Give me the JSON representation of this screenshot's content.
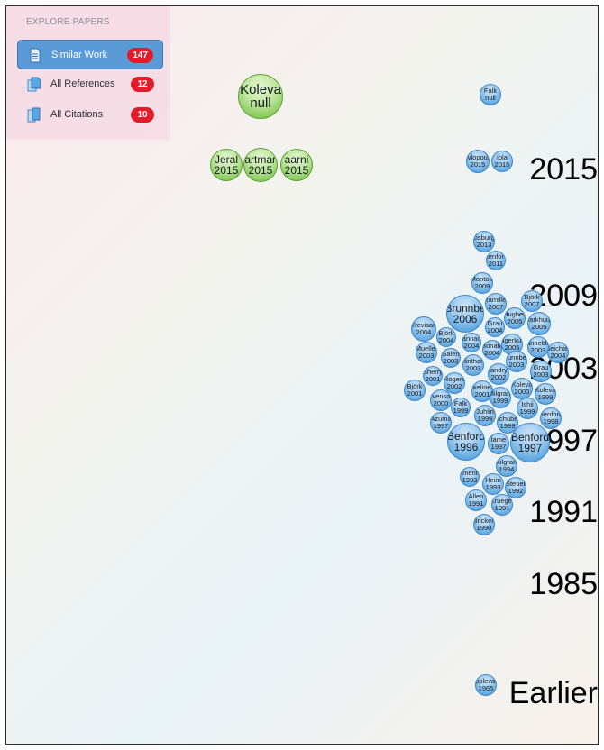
{
  "panel": {
    "title": "EXPLORE PAPERS",
    "items": [
      {
        "label": "Similar Work",
        "count": "147",
        "icon": "document-icon",
        "active": true
      },
      {
        "label": "All References",
        "count": "12",
        "icon": "references-icon",
        "active": false
      },
      {
        "label": "All Citations",
        "count": "10",
        "icon": "citations-icon",
        "active": false
      }
    ]
  },
  "timeline": {
    "years": [
      "2015",
      "2009",
      "2003",
      "1997",
      "1991",
      "1985",
      "Earlier"
    ]
  },
  "colors": {
    "selected_bubble": "#7dc74f",
    "paper_bubble": "#5aa6e0",
    "badge": "#e21b2a",
    "active_nav": "#5a9ad7"
  },
  "papers": [
    {
      "author": "Koleva",
      "year": "null",
      "kind": "selected"
    },
    {
      "author": "Jeral",
      "year": "2015",
      "kind": "selected"
    },
    {
      "author": "Hartmann",
      "year": "2015",
      "kind": "selected"
    },
    {
      "author": "aarni",
      "year": "2015",
      "kind": "selected"
    },
    {
      "author": "Falk",
      "year": "null"
    },
    {
      "author": "Pavlopoulos",
      "year": "2015"
    },
    {
      "author": "iola",
      "year": "2015"
    },
    {
      "author": "Vosburgh",
      "year": "2013"
    },
    {
      "author": "Benford",
      "year": "2011"
    },
    {
      "author": "Montola",
      "year": "2009"
    },
    {
      "author": "Brunnbe",
      "year": "2006"
    },
    {
      "author": "Ramiller",
      "year": "2007"
    },
    {
      "author": "Björk",
      "year": "2007"
    },
    {
      "author": "Grau",
      "year": "2004"
    },
    {
      "author": "Hughes",
      "year": "2005"
    },
    {
      "author": "Trevisan",
      "year": "2004"
    },
    {
      "author": "Barkhuus",
      "year": "2005"
    },
    {
      "author": "Björk",
      "year": "2004"
    },
    {
      "author": "lannacl",
      "year": "2004"
    },
    {
      "author": "Magerkurth",
      "year": "2005"
    },
    {
      "author": "Mueller",
      "year": "2003"
    },
    {
      "author": "Bonato",
      "year": "2004"
    },
    {
      "author": "Sanneblad",
      "year": "2003"
    },
    {
      "author": "Salen",
      "year": "2003"
    },
    {
      "author": "Brunnberg",
      "year": "2003"
    },
    {
      "author": "Seichter",
      "year": "2004"
    },
    {
      "author": "Flintham",
      "year": "2003"
    },
    {
      "author": "Sherry",
      "year": "2001"
    },
    {
      "author": "Grau",
      "year": "2003"
    },
    {
      "author": "Vandryk",
      "year": "2002"
    },
    {
      "author": "Rogers",
      "year": "2002"
    },
    {
      "author": "Björk",
      "year": "2001"
    },
    {
      "author": "Koleva",
      "year": "2000"
    },
    {
      "author": "skelinen",
      "year": "2001"
    },
    {
      "author": "Evenson",
      "year": "2000"
    },
    {
      "author": "Milgram",
      "year": "1999"
    },
    {
      "author": "Koleva",
      "year": "1999"
    },
    {
      "author": "Falk",
      "year": "1999"
    },
    {
      "author": "Ishii",
      "year": "1999"
    },
    {
      "author": "Azuma",
      "year": "1997"
    },
    {
      "author": "Juhlin",
      "year": "1999"
    },
    {
      "author": "Benford",
      "year": "1998"
    },
    {
      "author": "Schuber",
      "year": "1999"
    },
    {
      "author": "Benford",
      "year": "1996"
    },
    {
      "author": "lame",
      "year": "1997"
    },
    {
      "author": "Benford",
      "year": "1997"
    },
    {
      "author": "Milgram",
      "year": "1994"
    },
    {
      "author": "Pimentel",
      "year": "1993"
    },
    {
      "author": "Heim",
      "year": "1993"
    },
    {
      "author": "Steuer",
      "year": "1992"
    },
    {
      "author": "Allen",
      "year": "1991"
    },
    {
      "author": "Krueger",
      "year": "1991"
    },
    {
      "author": "Bricken",
      "year": "1990"
    },
    {
      "author": "Applevard",
      "year": "1965"
    }
  ]
}
